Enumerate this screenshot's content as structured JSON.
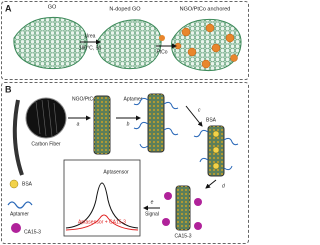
{
  "panel_a": {
    "label": "A",
    "stages": [
      "GO",
      "N-doped GO",
      "NGO/PtCo anchored"
    ],
    "reagent": "Urea",
    "condition": "180°C, 5h",
    "catalyst": "PtCo"
  },
  "panel_b": {
    "label": "B",
    "fiber": "Carbon Fiber",
    "coating": "NGO/PtCo",
    "steps": [
      "a",
      "b",
      "c",
      "d",
      "e"
    ],
    "aptamer": "Aptamer",
    "bsa": "BSA",
    "target": "CA15-3",
    "signal": "Signal",
    "legend": [
      "BSA",
      "Aptamer",
      "CA15-3"
    ],
    "plot": {
      "series": [
        "Aptasensor",
        "Aptasensor + CA15-3"
      ]
    }
  }
}
